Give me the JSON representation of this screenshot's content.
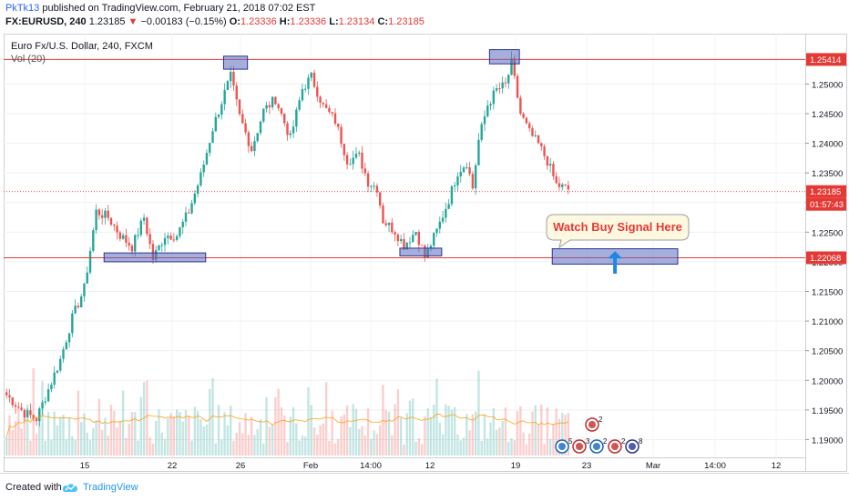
{
  "header": {
    "username": "PkTk13",
    "published_text": "published on TradingView.com, February 21, 2018 07:02 EST",
    "symbol": "FX:EURUSD, 240",
    "last_price": "1.23185",
    "change_text": "−0.00183 (−0.15%)",
    "o_label": "O:",
    "o_value": "1.23336",
    "h_label": "H:",
    "h_value": "1.23336",
    "l_label": "L:",
    "l_value": "1.23134",
    "c_label": "C:",
    "c_value": "1.23185"
  },
  "legend": {
    "title": "Euro Fx/U.S. Dollar, 240, FXCM",
    "volume": "Vol (20)"
  },
  "footer": {
    "created_with": "Created with",
    "brand": "TradingView"
  },
  "colors": {
    "up": "#26a69a",
    "down": "#ef5350",
    "level_line": "#e53935",
    "box_fill": "#5c6bc0",
    "arrow": "#1e88e5",
    "vol_ma": "#ff9800"
  },
  "chart_data": {
    "type": "candlestick",
    "symbol": "EURUSD",
    "timeframe": "240",
    "ylim": [
      1.187,
      1.2585
    ],
    "y_ticks": [
      "1.25000",
      "1.24500",
      "1.24000",
      "1.23500",
      "1.23000",
      "1.22500",
      "1.22000",
      "1.21500",
      "1.21000",
      "1.20500",
      "1.20000",
      "1.19500",
      "1.19000"
    ],
    "x_ticks": [
      "15",
      "22",
      "26",
      "Feb",
      "14:00",
      "12",
      "19",
      "23",
      "Mar",
      "14:00",
      "12"
    ],
    "price_labels": [
      {
        "value": 1.25414,
        "text": "1.25414",
        "color": "#e53935"
      },
      {
        "value": 1.23185,
        "text": "1.23185",
        "color": "#e53935"
      },
      {
        "value": 1.22068,
        "text": "1.22068",
        "color": "#e53935"
      }
    ],
    "countdown": "01:57:43",
    "horizontal_lines": [
      1.25414,
      1.22068
    ],
    "current_price": 1.23185,
    "annotation_text": "Watch Buy Signal Here",
    "event_markers": [
      {
        "label": "2"
      },
      {
        "label": "5"
      },
      {
        "label": "3"
      },
      {
        "label": "2"
      },
      {
        "label": "2"
      },
      {
        "label": "8"
      }
    ],
    "anchors": [
      [
        0,
        1.1975
      ],
      [
        6,
        1.1945
      ],
      [
        10,
        1.1935
      ],
      [
        14,
        1.1985
      ],
      [
        18,
        1.2035
      ],
      [
        22,
        1.2105
      ],
      [
        26,
        1.2155
      ],
      [
        30,
        1.2285
      ],
      [
        34,
        1.2275
      ],
      [
        38,
        1.2245
      ],
      [
        42,
        1.2225
      ],
      [
        46,
        1.2275
      ],
      [
        49,
        1.2205
      ],
      [
        53,
        1.2245
      ],
      [
        57,
        1.2245
      ],
      [
        61,
        1.2285
      ],
      [
        65,
        1.2345
      ],
      [
        69,
        1.2425
      ],
      [
        73,
        1.2485
      ],
      [
        75,
        1.2512
      ],
      [
        78,
        1.2445
      ],
      [
        82,
        1.239
      ],
      [
        86,
        1.2455
      ],
      [
        90,
        1.2475
      ],
      [
        95,
        1.2408
      ],
      [
        99,
        1.2492
      ],
      [
        102,
        1.2512
      ],
      [
        106,
        1.2462
      ],
      [
        110,
        1.2438
      ],
      [
        114,
        1.2372
      ],
      [
        118,
        1.2378
      ],
      [
        121,
        1.2335
      ],
      [
        124,
        1.2325
      ],
      [
        126,
        1.227
      ],
      [
        130,
        1.2252
      ],
      [
        133,
        1.2228
      ],
      [
        137,
        1.2252
      ],
      [
        140,
        1.2208
      ],
      [
        144,
        1.2252
      ],
      [
        148,
        1.2305
      ],
      [
        151,
        1.2352
      ],
      [
        154,
        1.2368
      ],
      [
        156,
        1.2325
      ],
      [
        158,
        1.2405
      ],
      [
        161,
        1.2465
      ],
      [
        164,
        1.249
      ],
      [
        167,
        1.2498
      ],
      [
        169,
        1.2535
      ],
      [
        172,
        1.245
      ],
      [
        175,
        1.2418
      ],
      [
        178,
        1.2398
      ],
      [
        181,
        1.237
      ],
      [
        184,
        1.233
      ],
      [
        188,
        1.2322
      ]
    ]
  }
}
